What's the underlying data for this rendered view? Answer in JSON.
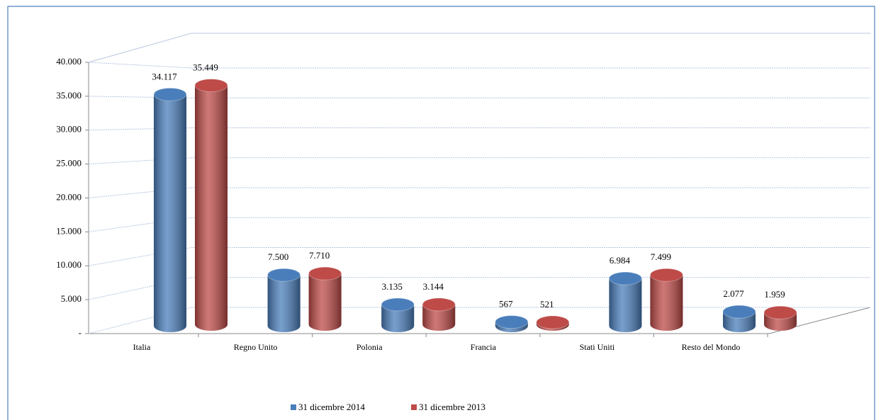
{
  "chart_data": {
    "type": "bar3d",
    "categories": [
      "Italia",
      "Regno Unito",
      "Polonia",
      "Francia",
      "Stati Uniti",
      "Resto del Mondo"
    ],
    "series": [
      {
        "name": "31 dicembre 2014",
        "color": "#4a7ebb",
        "values": [
          34117,
          7500,
          3135,
          567,
          6984,
          2077
        ],
        "value_labels": [
          "34.117",
          "7.500",
          "3.135",
          "567",
          "6.984",
          "2.077"
        ]
      },
      {
        "name": "31 dicembre 2013",
        "color": "#be4b48",
        "values": [
          35449,
          7710,
          3144,
          521,
          7499,
          1959
        ],
        "value_labels": [
          "35.449",
          "7.710",
          "3.144",
          "521",
          "7.499",
          "1.959"
        ]
      }
    ],
    "ylim": [
      0,
      40000
    ],
    "yticks": [
      {
        "value": 0,
        "label": "-"
      },
      {
        "value": 5000,
        "label": "5.000"
      },
      {
        "value": 10000,
        "label": "10.000"
      },
      {
        "value": 15000,
        "label": "15.000"
      },
      {
        "value": 20000,
        "label": "20.000"
      },
      {
        "value": 25000,
        "label": "25.000"
      },
      {
        "value": 30000,
        "label": "30.000"
      },
      {
        "value": 35000,
        "label": "35.000"
      },
      {
        "value": 40000,
        "label": "40.000"
      }
    ],
    "grid": true,
    "legend": "bottom"
  }
}
